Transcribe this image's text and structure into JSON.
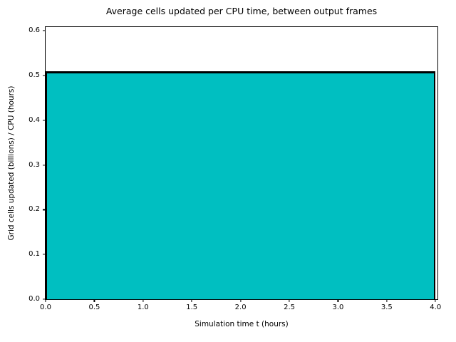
{
  "chart_data": {
    "type": "area",
    "title": "Average cells updated per CPU time, between output frames",
    "xlabel": "Simulation time t (hours)",
    "ylabel": "Grid cells updated (billions) / CPU (hours)",
    "x": [
      0.0,
      4.0
    ],
    "y": [
      0.51,
      0.51
    ],
    "constant_value": 0.51,
    "series": [
      {
        "name": "average cells updated per CPU time",
        "x": [
          0.0,
          4.0
        ],
        "values": [
          0.51,
          0.51
        ]
      }
    ],
    "xticks": [
      0.0,
      0.5,
      1.0,
      1.5,
      2.0,
      2.5,
      3.0,
      3.5,
      4.0
    ],
    "yticks": [
      0.0,
      0.1,
      0.2,
      0.3,
      0.4,
      0.5,
      0.6
    ],
    "xlim": [
      0,
      4.02
    ],
    "ylim": [
      0,
      0.608
    ],
    "tick_decimals": 1,
    "fill_color": "#00bfc1",
    "edge_color": "#000000",
    "grid": false,
    "legend": null
  }
}
